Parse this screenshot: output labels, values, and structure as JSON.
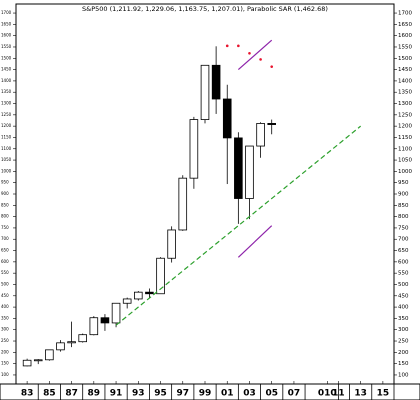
{
  "chart_data": {
    "type": "candlestick",
    "title": "S&P500 (1,211.92, 1,229.06, 1,163.75, 1,207.01), Parabolic SAR (1,462.68)",
    "x": [
      1983,
      1984,
      1985,
      1986,
      1987,
      1988,
      1989,
      1990,
      1991,
      1992,
      1993,
      1994,
      1995,
      1996,
      1997,
      1998,
      1999,
      2000,
      2001,
      2002,
      2003,
      2004,
      2005
    ],
    "open": [
      140,
      165,
      167,
      211,
      242,
      247,
      278,
      353,
      330,
      417,
      436,
      466,
      459,
      616,
      741,
      970,
      1229,
      1469,
      1320,
      1148,
      880,
      1112,
      1212
    ],
    "high": [
      172,
      170,
      212,
      254,
      336,
      283,
      360,
      369,
      418,
      442,
      471,
      482,
      621,
      757,
      983,
      1241,
      1469,
      1553,
      1383,
      1173,
      1112,
      1217,
      1229
    ],
    "low": [
      138,
      148,
      163,
      203,
      223,
      243,
      275,
      295,
      311,
      394,
      429,
      438,
      459,
      597,
      737,
      923,
      1212,
      1254,
      944,
      768,
      789,
      1060,
      1164
    ],
    "close": [
      165,
      167,
      211,
      242,
      247,
      278,
      353,
      330,
      417,
      436,
      466,
      459,
      616,
      741,
      970,
      1229,
      1469,
      1320,
      1148,
      880,
      1112,
      1212,
      1207
    ],
    "up_color": "#ffffff",
    "down_color": "#000000",
    "sar": {
      "color": "#e8142e",
      "x": [
        2001,
        2002,
        2003,
        2004,
        2005
      ],
      "values": [
        1555,
        1555,
        1522,
        1495,
        1463
      ]
    },
    "lines": [
      {
        "color": "#2ca02c",
        "dashed": true,
        "x": [
          1991,
          2013
        ],
        "y": [
          320,
          1200
        ]
      },
      {
        "color": "#8e24aa",
        "dashed": false,
        "x": [
          2002,
          2005
        ],
        "y": [
          1450,
          1580
        ]
      },
      {
        "color": "#8e24aa",
        "dashed": false,
        "x": [
          2002,
          2005
        ],
        "y": [
          620,
          760
        ]
      }
    ],
    "xlim": [
      1982,
      2016
    ],
    "xticks": [
      {
        "value": 1983,
        "label": "83"
      },
      {
        "value": 1985,
        "label": "85"
      },
      {
        "value": 1987,
        "label": "87"
      },
      {
        "value": 1989,
        "label": "89"
      },
      {
        "value": 1991,
        "label": "91"
      },
      {
        "value": 1993,
        "label": "93"
      },
      {
        "value": 1995,
        "label": "95"
      },
      {
        "value": 1997,
        "label": "97"
      },
      {
        "value": 1999,
        "label": "99"
      },
      {
        "value": 2001,
        "label": "01"
      },
      {
        "value": 2003,
        "label": "03"
      },
      {
        "value": 2005,
        "label": "05"
      },
      {
        "value": 2007,
        "label": "07"
      },
      {
        "value": 2010,
        "label": "010"
      },
      {
        "value": 2011,
        "label": "11"
      },
      {
        "value": 2013,
        "label": "13"
      },
      {
        "value": 2015,
        "label": "15"
      }
    ],
    "ylim": [
      60,
      1740
    ],
    "yticks": [
      100,
      150,
      200,
      250,
      300,
      350,
      400,
      450,
      500,
      550,
      600,
      650,
      700,
      750,
      800,
      850,
      900,
      950,
      1000,
      1050,
      1100,
      1150,
      1200,
      1250,
      1300,
      1350,
      1400,
      1450,
      1500,
      1550,
      1600,
      1650,
      1700
    ]
  }
}
